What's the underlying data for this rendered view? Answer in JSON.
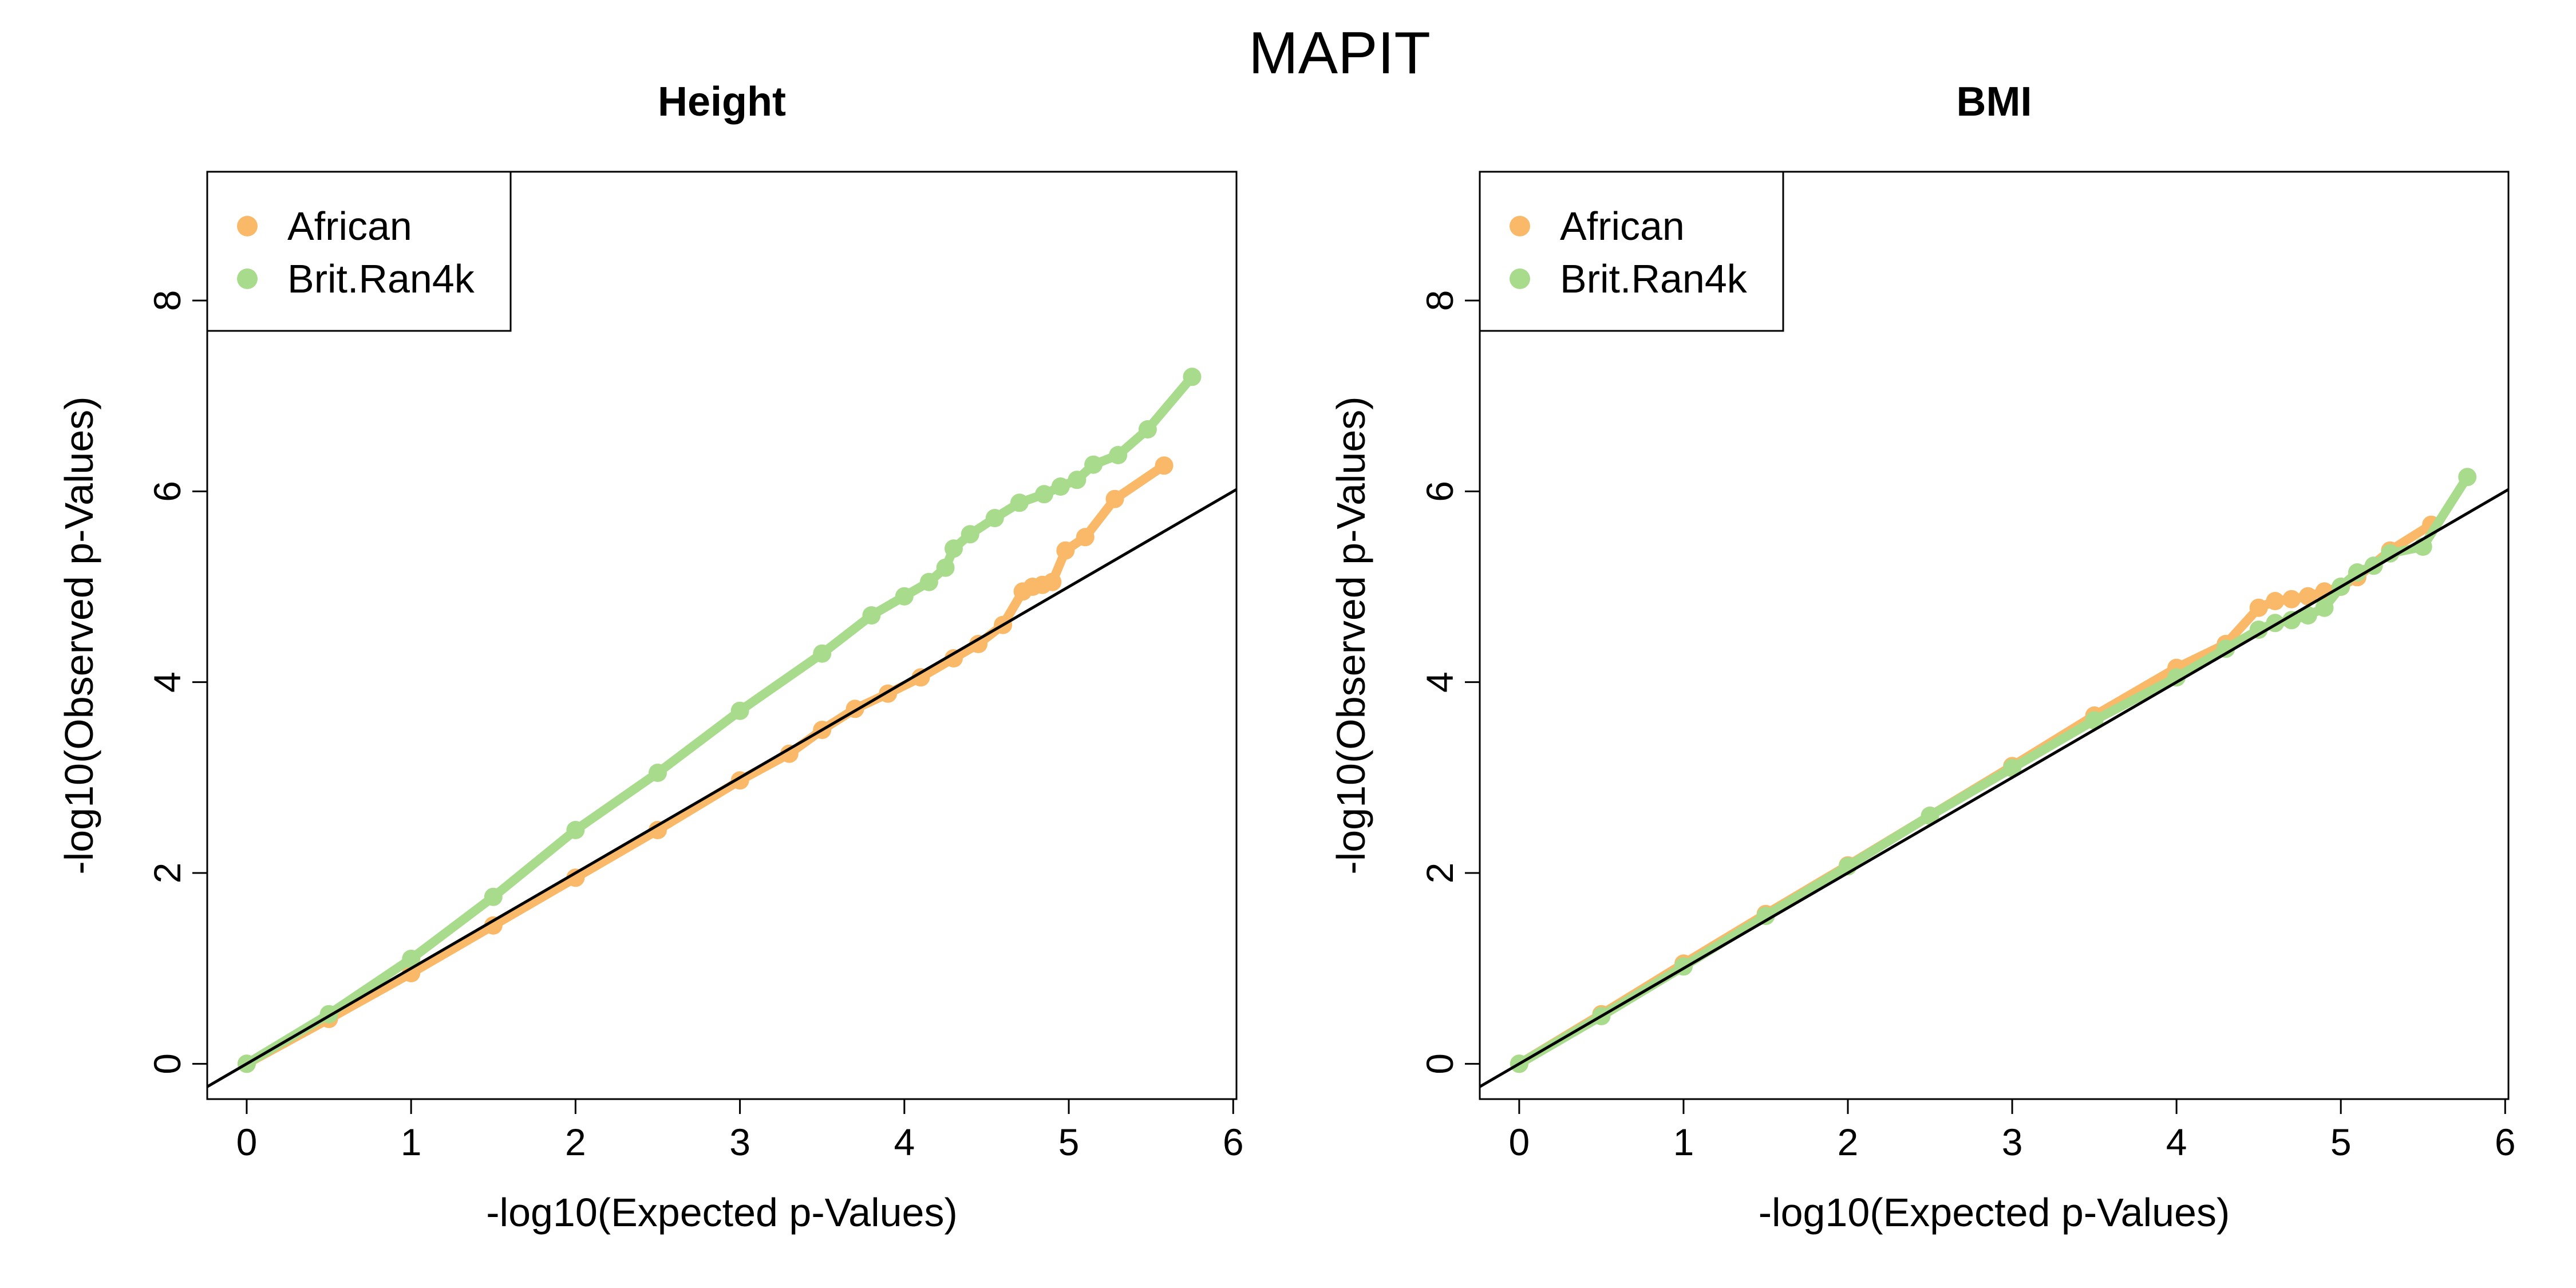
{
  "figure": {
    "title": "MAPIT"
  },
  "colors": {
    "african": "#F9B968",
    "brit": "#A8DC8C",
    "reference_line": "#000000"
  },
  "chart_data": [
    {
      "type": "scatter",
      "title": "Height",
      "xlabel": "-log10(Expected p-Values)",
      "ylabel": "-log10(Observed p-Values)",
      "xlim": [
        -0.24,
        6.02
      ],
      "ylim": [
        -0.37,
        9.35
      ],
      "x_ticks": [
        "0",
        "1",
        "2",
        "3",
        "4",
        "5",
        "6"
      ],
      "y_ticks": [
        "0",
        "2",
        "4",
        "6",
        "8"
      ],
      "legend": {
        "position": "top-left",
        "entries": [
          "African",
          "Brit.Ran4k"
        ]
      },
      "reference_line": {
        "slope": 1,
        "intercept": 0
      },
      "series": [
        {
          "name": "African",
          "color_key": "african",
          "x": [
            0,
            0.5,
            1.0,
            1.5,
            2.0,
            2.5,
            3.0,
            3.3,
            3.5,
            3.7,
            3.9,
            4.1,
            4.3,
            4.45,
            4.6,
            4.72,
            4.78,
            4.84,
            4.9,
            4.98,
            5.1,
            5.28,
            5.58
          ],
          "y": [
            0,
            0.47,
            0.95,
            1.45,
            1.95,
            2.45,
            2.97,
            3.25,
            3.5,
            3.72,
            3.88,
            4.05,
            4.25,
            4.4,
            4.6,
            4.95,
            5.0,
            5.02,
            5.05,
            5.38,
            5.52,
            5.92,
            6.27
          ]
        },
        {
          "name": "Brit.Ran4k",
          "color_key": "brit",
          "x": [
            0,
            0.5,
            1.0,
            1.5,
            2.0,
            2.5,
            3.0,
            3.5,
            3.8,
            4.0,
            4.15,
            4.25,
            4.3,
            4.4,
            4.55,
            4.7,
            4.85,
            4.95,
            5.05,
            5.15,
            5.3,
            5.48,
            5.75
          ],
          "y": [
            0,
            0.52,
            1.1,
            1.75,
            2.45,
            3.05,
            3.7,
            4.3,
            4.7,
            4.9,
            5.05,
            5.2,
            5.4,
            5.55,
            5.72,
            5.88,
            5.97,
            6.05,
            6.12,
            6.28,
            6.38,
            6.65,
            7.2
          ]
        }
      ]
    },
    {
      "type": "scatter",
      "title": "BMI",
      "xlabel": "-log10(Expected p-Values)",
      "ylabel": "-log10(Observed p-Values)",
      "xlim": [
        -0.24,
        6.02
      ],
      "ylim": [
        -0.37,
        9.35
      ],
      "x_ticks": [
        "0",
        "1",
        "2",
        "3",
        "4",
        "5",
        "6"
      ],
      "y_ticks": [
        "0",
        "2",
        "4",
        "6",
        "8"
      ],
      "legend": {
        "position": "top-left",
        "entries": [
          "African",
          "Brit.Ran4k"
        ]
      },
      "reference_line": {
        "slope": 1,
        "intercept": 0
      },
      "series": [
        {
          "name": "African",
          "color_key": "african",
          "x": [
            0,
            0.5,
            1.0,
            1.5,
            2.0,
            2.5,
            3.0,
            3.5,
            4.0,
            4.3,
            4.5,
            4.6,
            4.7,
            4.8,
            4.9,
            5.0,
            5.1,
            5.3,
            5.55
          ],
          "y": [
            0,
            0.52,
            1.05,
            1.57,
            2.08,
            2.6,
            3.12,
            3.65,
            4.15,
            4.4,
            4.78,
            4.85,
            4.87,
            4.9,
            4.95,
            5.0,
            5.1,
            5.38,
            5.65
          ]
        },
        {
          "name": "Brit.Ran4k",
          "color_key": "brit",
          "x": [
            0,
            0.5,
            1.0,
            1.5,
            2.0,
            2.5,
            3.0,
            3.5,
            4.0,
            4.3,
            4.5,
            4.6,
            4.7,
            4.8,
            4.9,
            5.0,
            5.1,
            5.2,
            5.3,
            5.5,
            5.77
          ],
          "y": [
            0,
            0.5,
            1.02,
            1.55,
            2.07,
            2.6,
            3.1,
            3.6,
            4.05,
            4.35,
            4.55,
            4.62,
            4.65,
            4.7,
            4.78,
            5.0,
            5.15,
            5.22,
            5.35,
            5.42,
            6.15
          ]
        }
      ]
    }
  ]
}
